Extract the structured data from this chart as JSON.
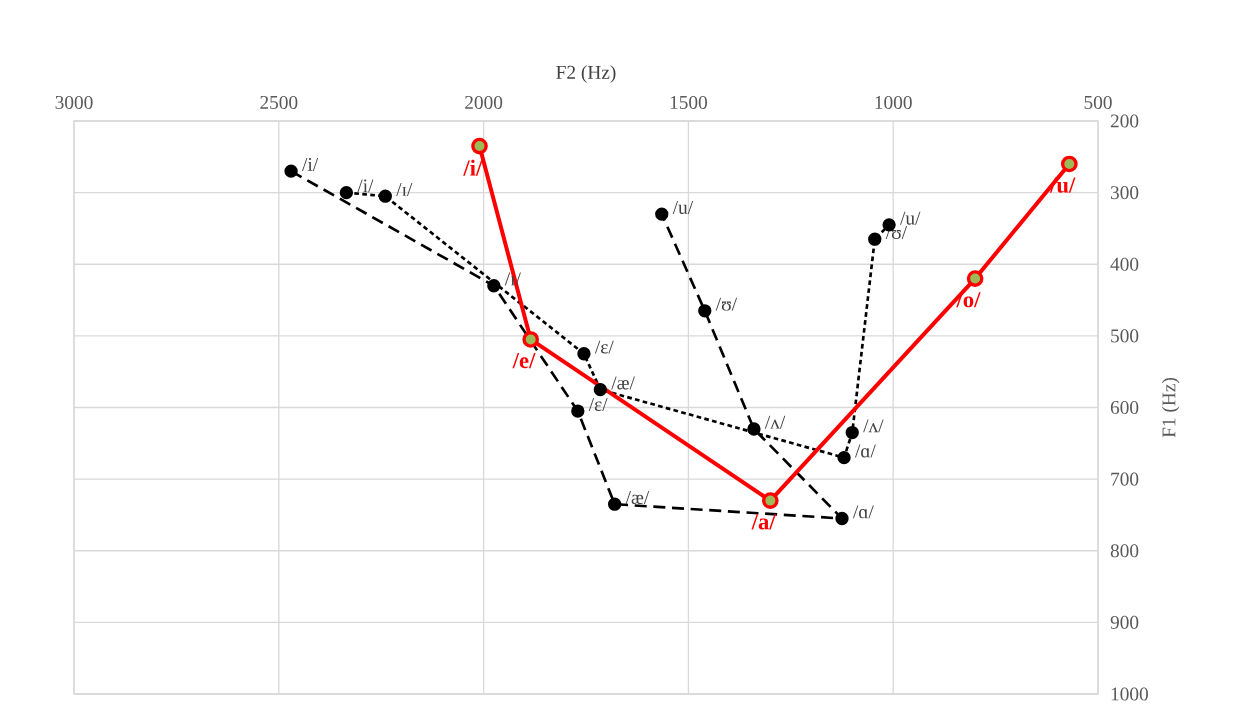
{
  "chart_data": {
    "type": "line",
    "xlabel": "F2 (Hz)",
    "ylabel": "F1 (Hz)",
    "xlim": [
      3000,
      500
    ],
    "ylim": [
      1000,
      200
    ],
    "xticks": [
      3000,
      2500,
      2000,
      1500,
      1000,
      500
    ],
    "yticks": [
      200,
      300,
      400,
      500,
      600,
      700,
      800,
      900,
      1000
    ],
    "grid": true,
    "marker": "circle",
    "series": [
      {
        "color": "#000000",
        "line_style": "dashed",
        "x": [
          2470,
          1975,
          1770,
          1680,
          1125,
          1340,
          1460,
          1565
        ],
        "values": [
          270,
          430,
          605,
          735,
          755,
          630,
          465,
          330
        ]
      },
      {
        "color": "#000000",
        "line_style": "dotted",
        "x": [
          2335,
          2240,
          1755,
          1715,
          1120,
          1100,
          1045,
          1010
        ],
        "values": [
          300,
          305,
          525,
          575,
          670,
          635,
          365,
          345
        ]
      },
      {
        "color": "#ff0000",
        "line_style": "solid",
        "x": [
          2010,
          1885,
          1300,
          800,
          570
        ],
        "values": [
          235,
          505,
          730,
          420,
          260
        ]
      }
    ],
    "annotations": [
      {
        "text": "/i/",
        "x": 2470,
        "y": 270
      },
      {
        "text": "/ɪ/",
        "x": 1975,
        "y": 430
      },
      {
        "text": "/ɛ/",
        "x": 1770,
        "y": 605
      },
      {
        "text": "/æ/",
        "x": 1680,
        "y": 735
      },
      {
        "text": "/ɑ/",
        "x": 1125,
        "y": 755
      },
      {
        "text": "/ʌ/",
        "x": 1340,
        "y": 630
      },
      {
        "text": "/ʊ/",
        "x": 1460,
        "y": 465
      },
      {
        "text": "/u/",
        "x": 1565,
        "y": 330
      },
      {
        "text": "/i/",
        "x": 2335,
        "y": 300
      },
      {
        "text": "/ɪ/",
        "x": 2240,
        "y": 305
      },
      {
        "text": "/ɛ/",
        "x": 1755,
        "y": 525
      },
      {
        "text": "/æ/",
        "x": 1715,
        "y": 575
      },
      {
        "text": "/ɑ/",
        "x": 1120,
        "y": 670
      },
      {
        "text": "/ʌ/",
        "x": 1100,
        "y": 635
      },
      {
        "text": "/ʊ/",
        "x": 1045,
        "y": 365
      },
      {
        "text": "/u/",
        "x": 1010,
        "y": 345
      },
      {
        "text": "/i/",
        "x": 2010,
        "y": 235
      },
      {
        "text": "/e/",
        "x": 1885,
        "y": 505
      },
      {
        "text": "/a/",
        "x": 1300,
        "y": 730
      },
      {
        "text": "/o/",
        "x": 800,
        "y": 420
      },
      {
        "text": "/u/",
        "x": 570,
        "y": 260
      }
    ]
  }
}
